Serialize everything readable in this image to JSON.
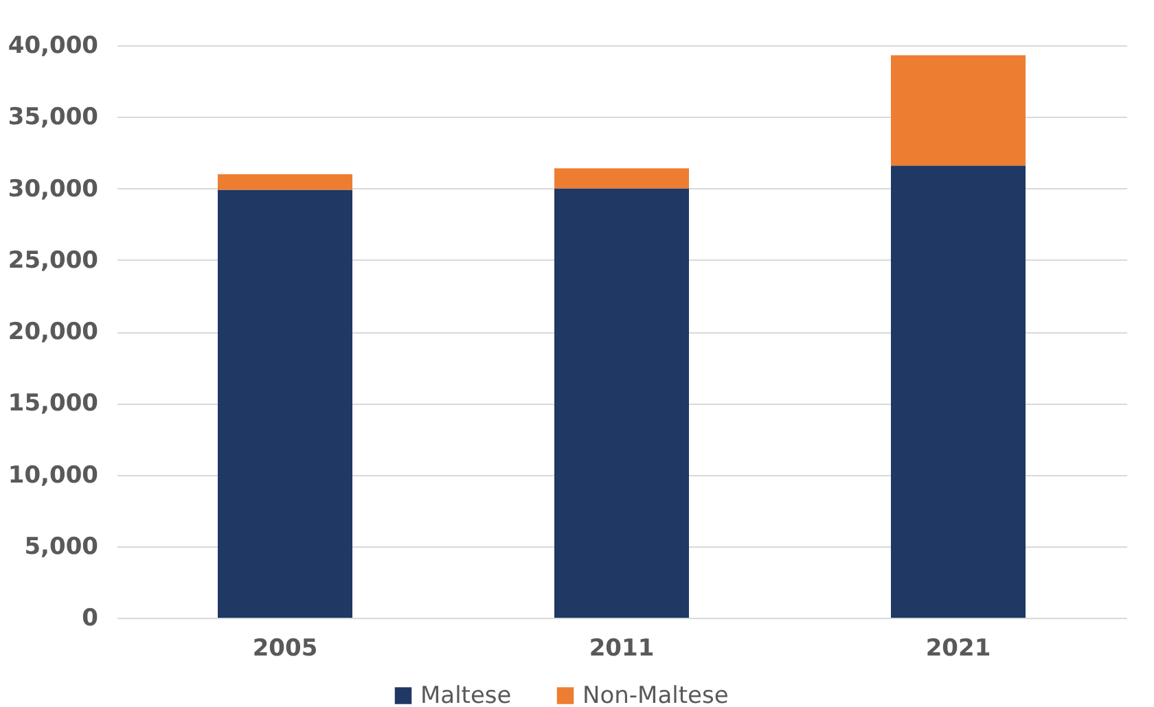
{
  "chart_data": {
    "type": "bar",
    "stacked": true,
    "categories": [
      "2005",
      "2011",
      "2021"
    ],
    "series": [
      {
        "name": "Maltese",
        "color": "#1f3864",
        "values": [
          29900,
          30000,
          31600
        ]
      },
      {
        "name": "Non-Maltese",
        "color": "#ed7d31",
        "values": [
          1100,
          1400,
          7700
        ]
      }
    ],
    "ylim": [
      0,
      40000
    ],
    "yticks": [
      0,
      {
        "value": 5000,
        "label": "5,000"
      },
      {
        "value": 10000,
        "label": "10,000"
      },
      {
        "value": 15000,
        "label": "15,000"
      },
      {
        "value": 20000,
        "label": "20,000"
      },
      {
        "value": 25000,
        "label": "25,000"
      },
      {
        "value": 30000,
        "label": "30,000"
      },
      {
        "value": 35000,
        "label": "35,000"
      },
      {
        "value": 40000,
        "label": "40,000"
      }
    ],
    "grid": "y",
    "legend": "bottom"
  }
}
